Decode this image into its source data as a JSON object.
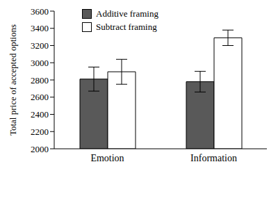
{
  "chart_data": {
    "type": "bar",
    "y_label": "Total price of accepted options",
    "categories": [
      "Emotion",
      "Information"
    ],
    "series": [
      {
        "name": "Additive framing",
        "color": "#595959",
        "values": [
          2810,
          2780
        ],
        "errors": [
          140,
          120
        ]
      },
      {
        "name": "Subtract framing",
        "color": "#ffffff",
        "values": [
          2895,
          3290
        ],
        "errors": [
          145,
          90
        ]
      }
    ],
    "ylim": [
      2000,
      3600
    ],
    "yticks": [
      2000,
      2200,
      2400,
      2600,
      2800,
      3000,
      3200,
      3400,
      3600
    ],
    "grid": false,
    "legend": "upper left"
  }
}
